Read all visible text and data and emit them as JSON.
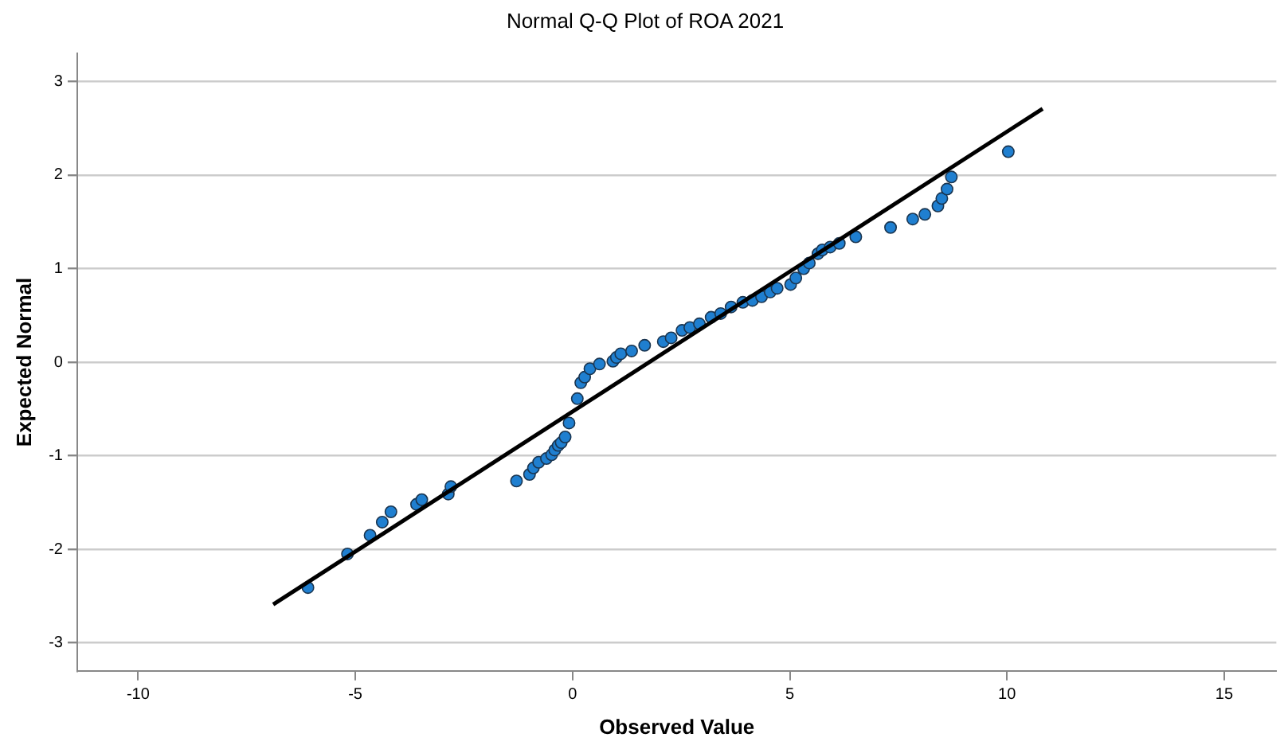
{
  "chart_data": {
    "type": "scatter",
    "title": "Normal Q-Q Plot of ROA 2021",
    "xlabel": "Observed Value",
    "ylabel": "Expected Normal",
    "xlim": [
      -11.4,
      16.2
    ],
    "xticks": [
      -10,
      -5,
      0,
      5,
      10,
      15
    ],
    "ylim": [
      -3.3,
      3.3
    ],
    "yticks": [
      -3,
      -2,
      -1,
      0,
      1,
      2,
      3
    ],
    "grid": "y",
    "series": [
      {
        "marker": "circle",
        "color": "#1f7fd0",
        "x": [
          -6.09,
          -5.18,
          -4.66,
          -4.38,
          -4.18,
          -3.59,
          -3.47,
          -2.86,
          -2.8,
          -1.29,
          -0.99,
          -0.9,
          -0.78,
          -0.6,
          -0.48,
          -0.41,
          -0.33,
          -0.26,
          -0.17,
          -0.08,
          0.11,
          0.19,
          0.28,
          0.4,
          0.62,
          0.93,
          1.01,
          1.11,
          1.36,
          1.66,
          2.09,
          2.27,
          2.52,
          2.7,
          2.92,
          3.19,
          3.41,
          3.65,
          3.92,
          4.14,
          4.35,
          4.55,
          4.71,
          5.02,
          5.14,
          5.32,
          5.45,
          5.65,
          5.75,
          5.93,
          6.14,
          6.52,
          7.32,
          7.83,
          8.11,
          8.41,
          8.5,
          8.62,
          8.72,
          10.03
        ],
        "values": [
          -2.41,
          -2.05,
          -1.85,
          -1.71,
          -1.6,
          -1.52,
          -1.47,
          -1.41,
          -1.33,
          -1.27,
          -1.2,
          -1.13,
          -1.07,
          -1.03,
          -0.99,
          -0.94,
          -0.89,
          -0.86,
          -0.8,
          -0.65,
          -0.39,
          -0.22,
          -0.16,
          -0.07,
          -0.02,
          0.01,
          0.05,
          0.09,
          0.12,
          0.18,
          0.22,
          0.26,
          0.34,
          0.37,
          0.41,
          0.48,
          0.52,
          0.59,
          0.64,
          0.66,
          0.7,
          0.75,
          0.79,
          0.83,
          0.9,
          1.0,
          1.06,
          1.16,
          1.2,
          1.23,
          1.27,
          1.34,
          1.44,
          1.53,
          1.58,
          1.67,
          1.75,
          1.85,
          1.98,
          2.25
        ]
      },
      {
        "type": "line",
        "marker": "none",
        "color": "#000000",
        "x": [
          -6.89,
          10.82
        ],
        "values": [
          -2.59,
          2.71
        ]
      }
    ]
  }
}
